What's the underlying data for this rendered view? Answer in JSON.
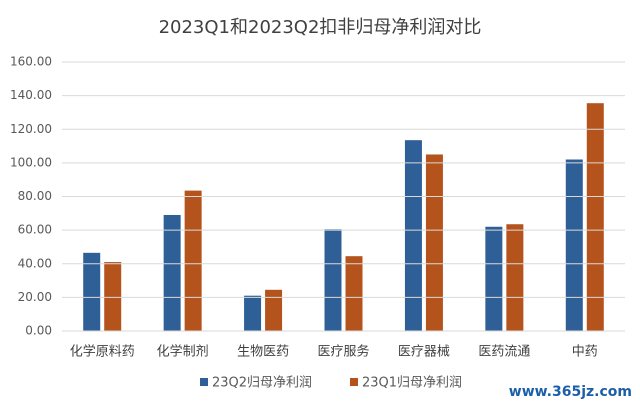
{
  "chart_data": {
    "type": "bar",
    "title": "2023Q1和2023Q2扣非归母净利润对比",
    "categories": [
      "化学原料药",
      "化学制剂",
      "生物医药",
      "医疗服务",
      "医疗器械",
      "医药流通",
      "中药"
    ],
    "series": [
      {
        "name": "23Q2归母净利润",
        "color": "#2e5f97",
        "values": [
          46.5,
          69,
          21,
          60.5,
          113.5,
          62,
          102
        ]
      },
      {
        "name": "23Q1归母净利润",
        "color": "#b5531c",
        "values": [
          41,
          83.5,
          24.5,
          44.5,
          105,
          63.5,
          135.5
        ]
      }
    ],
    "ylim": [
      0,
      160
    ],
    "yticks": [
      {
        "value": 0,
        "label": "0.00"
      },
      {
        "value": 20,
        "label": "20.00"
      },
      {
        "value": 40,
        "label": "40.00"
      },
      {
        "value": 60,
        "label": "60.00"
      },
      {
        "value": 80,
        "label": "80.00"
      },
      {
        "value": 100,
        "label": "100.00"
      },
      {
        "value": 120,
        "label": "120.00"
      },
      {
        "value": 140,
        "label": "140.00"
      },
      {
        "value": 160,
        "label": "160.00"
      }
    ],
    "grid": true,
    "legend": "bottom",
    "watermark": "www.365jz.com"
  }
}
